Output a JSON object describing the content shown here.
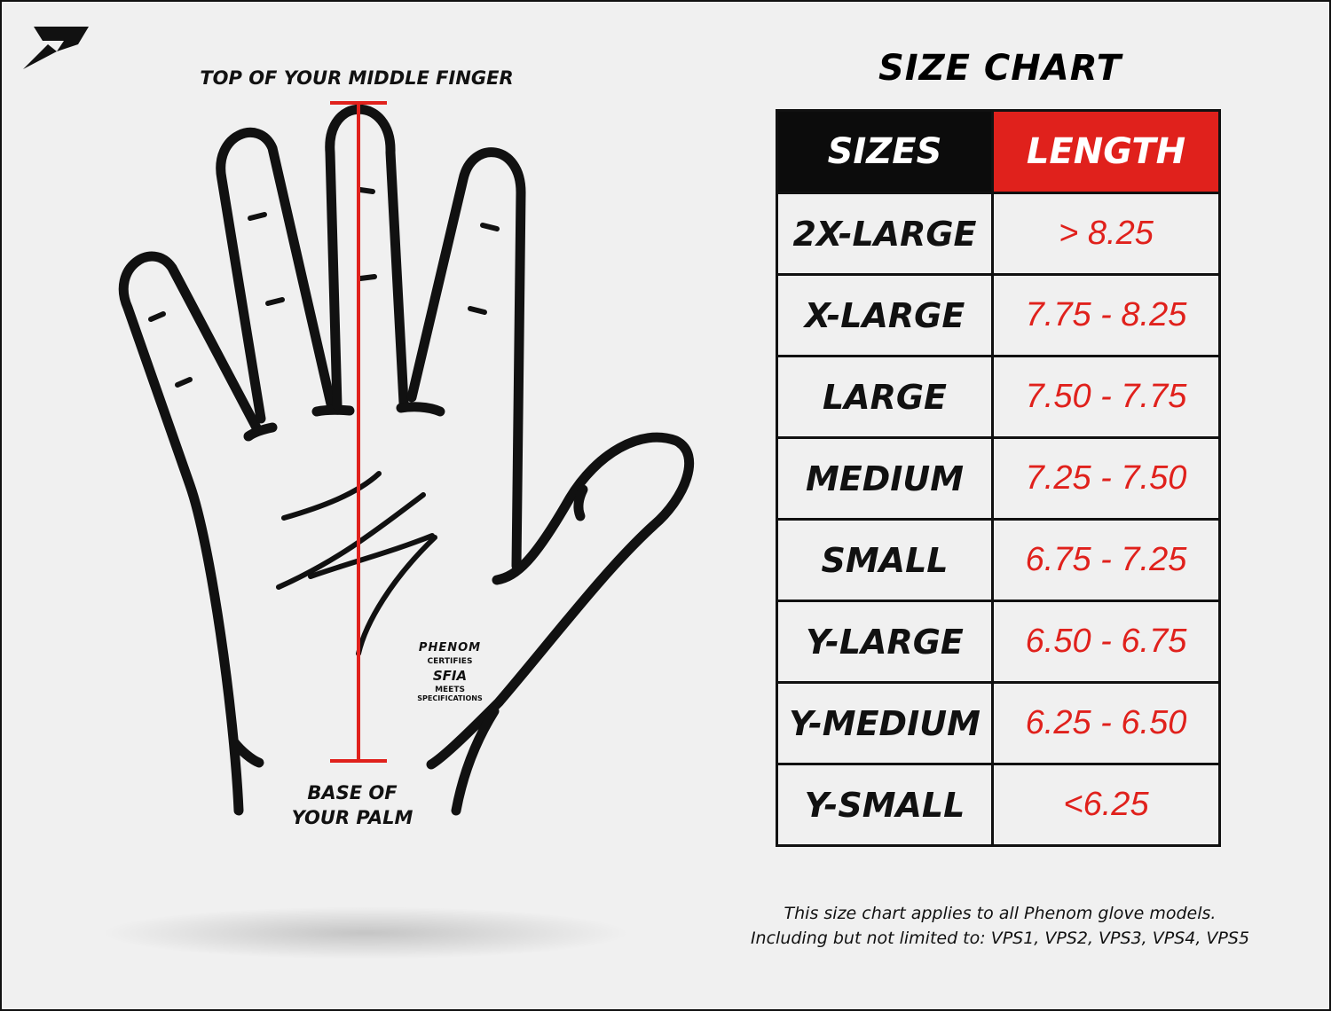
{
  "brand": {
    "logo": "Phenom P logo"
  },
  "diagram": {
    "top_label": "TOP OF YOUR MIDDLE FINGER",
    "bottom_label_1": "BASE OF",
    "bottom_label_2": "YOUR PALM",
    "measure_color": "#e0211c",
    "badge": {
      "brand": "PHENOM",
      "line1": "CERTIFIES",
      "org": "SFIA",
      "line2": "MEETS",
      "line3": "SPECIFICATIONS"
    }
  },
  "chart": {
    "title": "SIZE CHART",
    "headers": [
      "SIZES",
      "LENGTH"
    ],
    "rows": [
      {
        "size": "2X-LARGE",
        "length": "> 8.25"
      },
      {
        "size": "X-LARGE",
        "length": "7.75 - 8.25"
      },
      {
        "size": "LARGE",
        "length": "7.50 - 7.75"
      },
      {
        "size": "MEDIUM",
        "length": "7.25 - 7.50"
      },
      {
        "size": "SMALL",
        "length": "6.75 - 7.25"
      },
      {
        "size": "Y-LARGE",
        "length": "6.50 - 6.75"
      },
      {
        "size": "Y-MEDIUM",
        "length": "6.25 - 6.50"
      },
      {
        "size": "Y-SMALL",
        "length": "<6.25"
      }
    ],
    "colors": {
      "header_sizes": "#0c0c0c",
      "header_length": "#e0211c",
      "length_text": "#e0211c"
    }
  },
  "note": {
    "line1": "This size chart applies to all Phenom glove models.",
    "line2": "Including but not limited to: VPS1, VPS2, VPS3, VPS4, VPS5"
  }
}
